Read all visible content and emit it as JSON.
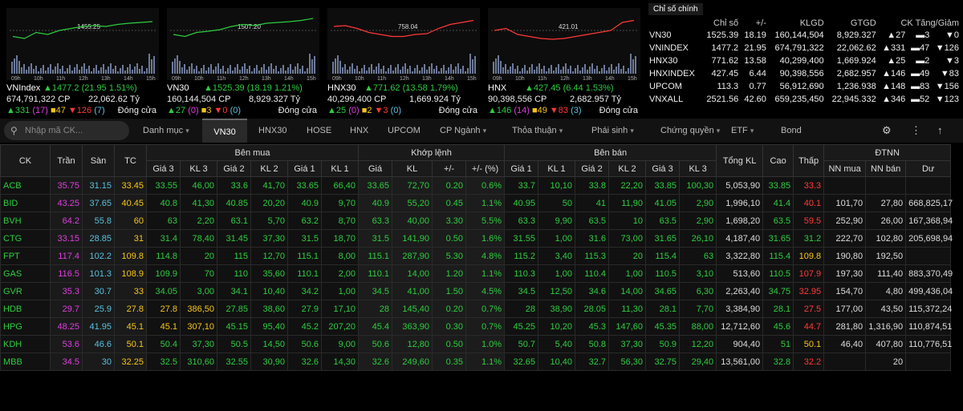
{
  "mini_charts": [
    {
      "name": "VNIndex",
      "ref_label": "1455.25",
      "change": "1477.2 (21.95 1.51%)",
      "volume": "674,791,322 CP",
      "value": "22,062.62 Tỷ",
      "up": "331",
      "up_n": "(17)",
      "ref": "47",
      "down": "126",
      "down_n": "(7)",
      "status": "Đóng cửa",
      "times": [
        "09h",
        "10h",
        "11h",
        "12h",
        "13h",
        "14h",
        "15h"
      ]
    },
    {
      "name": "VN30",
      "ref_label": "1507.20",
      "change": "1525.39 (18.19 1.21%)",
      "volume": "160,144,504 CP",
      "value": "8,929.327 Tỷ",
      "up": "27",
      "up_n": "(0)",
      "ref": "3",
      "down": "0",
      "down_n": "(0)",
      "status": "Đóng cửa",
      "times": [
        "09h",
        "10h",
        "11h",
        "12h",
        "13h",
        "14h",
        "15h"
      ]
    },
    {
      "name": "HNX30",
      "ref_label": "758.04",
      "change": "771.62 (13.58 1.79%)",
      "volume": "40,299,400 CP",
      "value": "1,669.924 Tỷ",
      "up": "25",
      "up_n": "(0)",
      "ref": "2",
      "down": "3",
      "down_n": "(0)",
      "status": "Đóng cửa",
      "times": [
        "09h",
        "10h",
        "11h",
        "12h",
        "13h",
        "14h",
        "15h"
      ]
    },
    {
      "name": "HNX",
      "ref_label": "421.01",
      "change": "427.45 (6.44 1.53%)",
      "volume": "90,398,556 CP",
      "value": "2,682.957 Tỷ",
      "up": "146",
      "up_n": "(14)",
      "ref": "49",
      "down": "83",
      "down_n": "(3)",
      "status": "Đóng cửa",
      "times": [
        "09h",
        "10h",
        "11h",
        "12h",
        "13h",
        "14h",
        "15h"
      ]
    }
  ],
  "index_panel": {
    "tab": "Chỉ số chính",
    "headers": [
      "Chỉ số",
      "+/-",
      "KLGD",
      "GTGD",
      "CK Tăng/Giảm"
    ],
    "rows": [
      {
        "name": "VN30",
        "value": "1525.39",
        "chg": "18.19",
        "klgd": "160,144,504",
        "gtgd": "8,929.327",
        "up": "27",
        "ref": "3",
        "down": "0"
      },
      {
        "name": "VNINDEX",
        "value": "1477.2",
        "chg": "21.95",
        "klgd": "674,791,322",
        "gtgd": "22,062.62",
        "up": "331",
        "ref": "47",
        "down": "126"
      },
      {
        "name": "HNX30",
        "value": "771.62",
        "chg": "13.58",
        "klgd": "40,299,400",
        "gtgd": "1,669.924",
        "up": "25",
        "ref": "2",
        "down": "3"
      },
      {
        "name": "HNXINDEX",
        "value": "427.45",
        "chg": "6.44",
        "klgd": "90,398,556",
        "gtgd": "2,682.957",
        "up": "146",
        "ref": "49",
        "down": "83"
      },
      {
        "name": "UPCOM",
        "value": "113.3",
        "chg": "0.77",
        "klgd": "56,912,690",
        "gtgd": "1,236.938",
        "up": "148",
        "ref": "83",
        "down": "156"
      },
      {
        "name": "VNXALL",
        "value": "2521.56",
        "chg": "42.60",
        "klgd": "659,235,450",
        "gtgd": "22,945.332",
        "up": "346",
        "ref": "52",
        "down": "123"
      }
    ]
  },
  "toolbar": {
    "search_placeholder": "Nhập mã CK...",
    "tabs": [
      "Danh mục",
      "VN30",
      "HNX30",
      "HOSE",
      "HNX",
      "UPCOM",
      "CP Ngành",
      "Thỏa thuận",
      "Phái sinh",
      "Chứng quyền",
      "ETF",
      "Bond"
    ],
    "active_tab": "VN30"
  },
  "table": {
    "group_headers": {
      "sym": "CK",
      "ceil": "Trần",
      "floor": "Sàn",
      "ref": "TC",
      "bid": "Bên mua",
      "match": "Khớp lệnh",
      "ask": "Bên bán",
      "total": "Tổng KL",
      "high": "Cao",
      "low": "Thấp",
      "foreign": "ĐTNN"
    },
    "sub_headers": [
      "Giá 3",
      "KL 3",
      "Giá 2",
      "KL 2",
      "Giá 1",
      "KL 1",
      "Giá",
      "KL",
      "+/-",
      "+/- (%)",
      "Giá 1",
      "KL 1",
      "Giá 2",
      "KL 2",
      "Giá 3",
      "KL 3",
      "NN mua",
      "NN bán",
      "Dư"
    ],
    "rows": [
      [
        "ACB",
        "35.75",
        "31.15",
        "33.45",
        "33.55",
        "46,00",
        "33.6",
        "41,70",
        "33.65",
        "66,40",
        "33.65",
        "72,70",
        "0.20",
        "0.6%",
        "33.7",
        "10,10",
        "33.8",
        "22,20",
        "33.85",
        "100,30",
        "5,053,90",
        "33.85",
        "33.3",
        "",
        "",
        ""
      ],
      [
        "BID",
        "43.25",
        "37.65",
        "40.45",
        "40.8",
        "41,30",
        "40.85",
        "20,20",
        "40.9",
        "9,70",
        "40.9",
        "55,20",
        "0.45",
        "1.1%",
        "40.95",
        "50",
        "41",
        "11,90",
        "41.05",
        "2,90",
        "1,996,10",
        "41.4",
        "40.1",
        "101,70",
        "27,80",
        "668,825,17"
      ],
      [
        "BVH",
        "64.2",
        "55.8",
        "60",
        "63",
        "2,20",
        "63.1",
        "5,70",
        "63.2",
        "8,70",
        "63.3",
        "40,00",
        "3.30",
        "5.5%",
        "63.3",
        "9,90",
        "63.5",
        "10",
        "63.5",
        "2,90",
        "1,698,20",
        "63.5",
        "59.5",
        "252,90",
        "26,00",
        "167,368,94"
      ],
      [
        "CTG",
        "33.15",
        "28.85",
        "31",
        "31.4",
        "78,40",
        "31.45",
        "37,30",
        "31.5",
        "18,70",
        "31.5",
        "141,90",
        "0.50",
        "1.6%",
        "31.55",
        "1,00",
        "31.6",
        "73,00",
        "31.65",
        "26,10",
        "4,187,40",
        "31.65",
        "31.2",
        "222,70",
        "102,80",
        "205,698,94"
      ],
      [
        "FPT",
        "117.4",
        "102.2",
        "109.8",
        "114.8",
        "20",
        "115",
        "12,70",
        "115.1",
        "8,00",
        "115.1",
        "287,90",
        "5.30",
        "4.8%",
        "115.2",
        "3,40",
        "115.3",
        "20",
        "115.4",
        "63",
        "3,322,80",
        "115.4",
        "109.8",
        "190,80",
        "192,50",
        ""
      ],
      [
        "GAS",
        "116.5",
        "101.3",
        "108.9",
        "109.9",
        "70",
        "110",
        "35,60",
        "110.1",
        "2,00",
        "110.1",
        "14,00",
        "1.20",
        "1.1%",
        "110.3",
        "1,00",
        "110.4",
        "1,00",
        "110.5",
        "3,10",
        "513,60",
        "110.5",
        "107.9",
        "197,30",
        "111,40",
        "883,370,49"
      ],
      [
        "GVR",
        "35.3",
        "30.7",
        "33",
        "34.05",
        "3,00",
        "34.1",
        "10,40",
        "34.2",
        "1,00",
        "34.5",
        "41,00",
        "1.50",
        "4.5%",
        "34.5",
        "12,50",
        "34.6",
        "14,00",
        "34.65",
        "6,30",
        "2,263,40",
        "34.75",
        "32.95",
        "154,70",
        "4,80",
        "499,436,04"
      ],
      [
        "HDB",
        "29.7",
        "25.9",
        "27.8",
        "27.8",
        "386,50",
        "27.85",
        "38,60",
        "27.9",
        "17,10",
        "28",
        "145,40",
        "0.20",
        "0.7%",
        "28",
        "38,90",
        "28.05",
        "11,30",
        "28.1",
        "7,70",
        "3,384,90",
        "28.1",
        "27.5",
        "177,00",
        "43,50",
        "115,372,24"
      ],
      [
        "HPG",
        "48.25",
        "41.95",
        "45.1",
        "45.1",
        "307,10",
        "45.15",
        "95,40",
        "45.2",
        "207,20",
        "45.4",
        "363,90",
        "0.30",
        "0.7%",
        "45.25",
        "10,20",
        "45.3",
        "147,60",
        "45.35",
        "88,00",
        "12,712,60",
        "45.6",
        "44.7",
        "281,80",
        "1,316,90",
        "110,874,51"
      ],
      [
        "KDH",
        "53.6",
        "46.6",
        "50.1",
        "50.4",
        "37,30",
        "50.5",
        "14,50",
        "50.6",
        "9,00",
        "50.6",
        "12,80",
        "0.50",
        "1.0%",
        "50.7",
        "5,40",
        "50.8",
        "37,30",
        "50.9",
        "12,20",
        "904,40",
        "51",
        "50.1",
        "46,40",
        "407,80",
        "110,776,51"
      ],
      [
        "MBB",
        "34.5",
        "30",
        "32.25",
        "32.5",
        "310,60",
        "32.55",
        "30,90",
        "32.6",
        "14,30",
        "32.6",
        "249,60",
        "0.35",
        "1.1%",
        "32.65",
        "10,40",
        "32.7",
        "56,30",
        "32.75",
        "29,40",
        "13,561,00",
        "32.8",
        "32.2",
        "",
        "20",
        ""
      ]
    ]
  },
  "colors": {
    "up": "#2ecc40",
    "down": "#ff3838",
    "ref": "#f5c518",
    "ceil": "#e03de0",
    "floor": "#5bc0de"
  }
}
